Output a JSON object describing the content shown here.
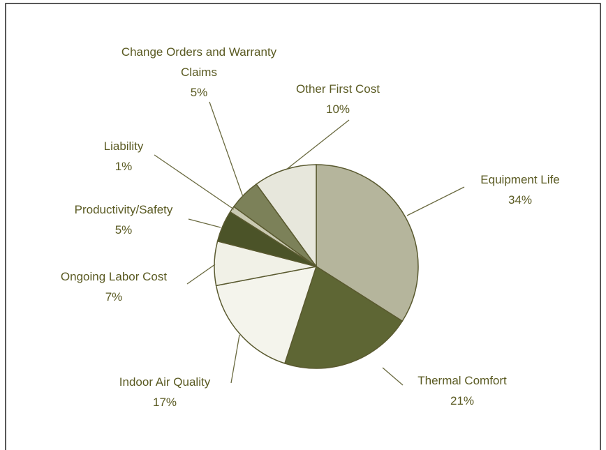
{
  "chart_data": {
    "type": "pie",
    "categories": [
      "Equipment Life",
      "Thermal Comfort",
      "Indoor Air Quality",
      "Ongoing Labor Cost",
      "Productivity/Safety",
      "Liability",
      "Change Orders and Warranty Claims",
      "Other First Cost"
    ],
    "values": [
      34,
      21,
      17,
      7,
      5,
      1,
      5,
      10
    ],
    "value_labels": [
      "34%",
      "21%",
      "17%",
      "7%",
      "5%",
      "1%",
      "5%",
      "10%"
    ],
    "colors": [
      "#b5b59c",
      "#5e6634",
      "#f4f4ec",
      "#f1f1e7",
      "#4b5328",
      "#c9c9b2",
      "#7c8159",
      "#e7e7dc"
    ]
  }
}
